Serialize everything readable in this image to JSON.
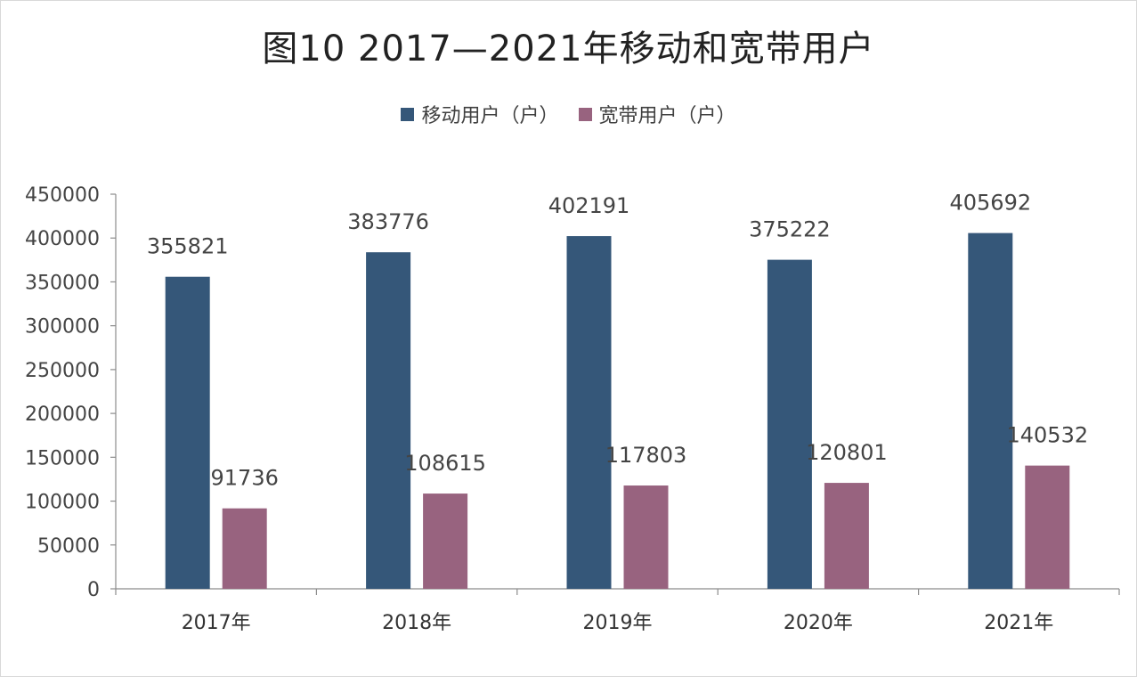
{
  "chart_data": {
    "type": "bar",
    "title": "图10   2017—2021年移动和宽带用户",
    "categories": [
      "2017年",
      "2018年",
      "2019年",
      "2020年",
      "2021年"
    ],
    "series": [
      {
        "name": "移动用户（户）",
        "color": "#355779",
        "values": [
          355821,
          383776,
          402191,
          375222,
          405692
        ]
      },
      {
        "name": "宽带用户（户）",
        "color": "#98637f",
        "values": [
          91736,
          108615,
          117803,
          120801,
          140532
        ]
      }
    ],
    "ylim": [
      0,
      450000
    ],
    "yticks": [
      0,
      50000,
      100000,
      150000,
      200000,
      250000,
      300000,
      350000,
      400000,
      450000
    ],
    "legend_position": "top-center",
    "grid": false,
    "xlabel": "",
    "ylabel": ""
  }
}
